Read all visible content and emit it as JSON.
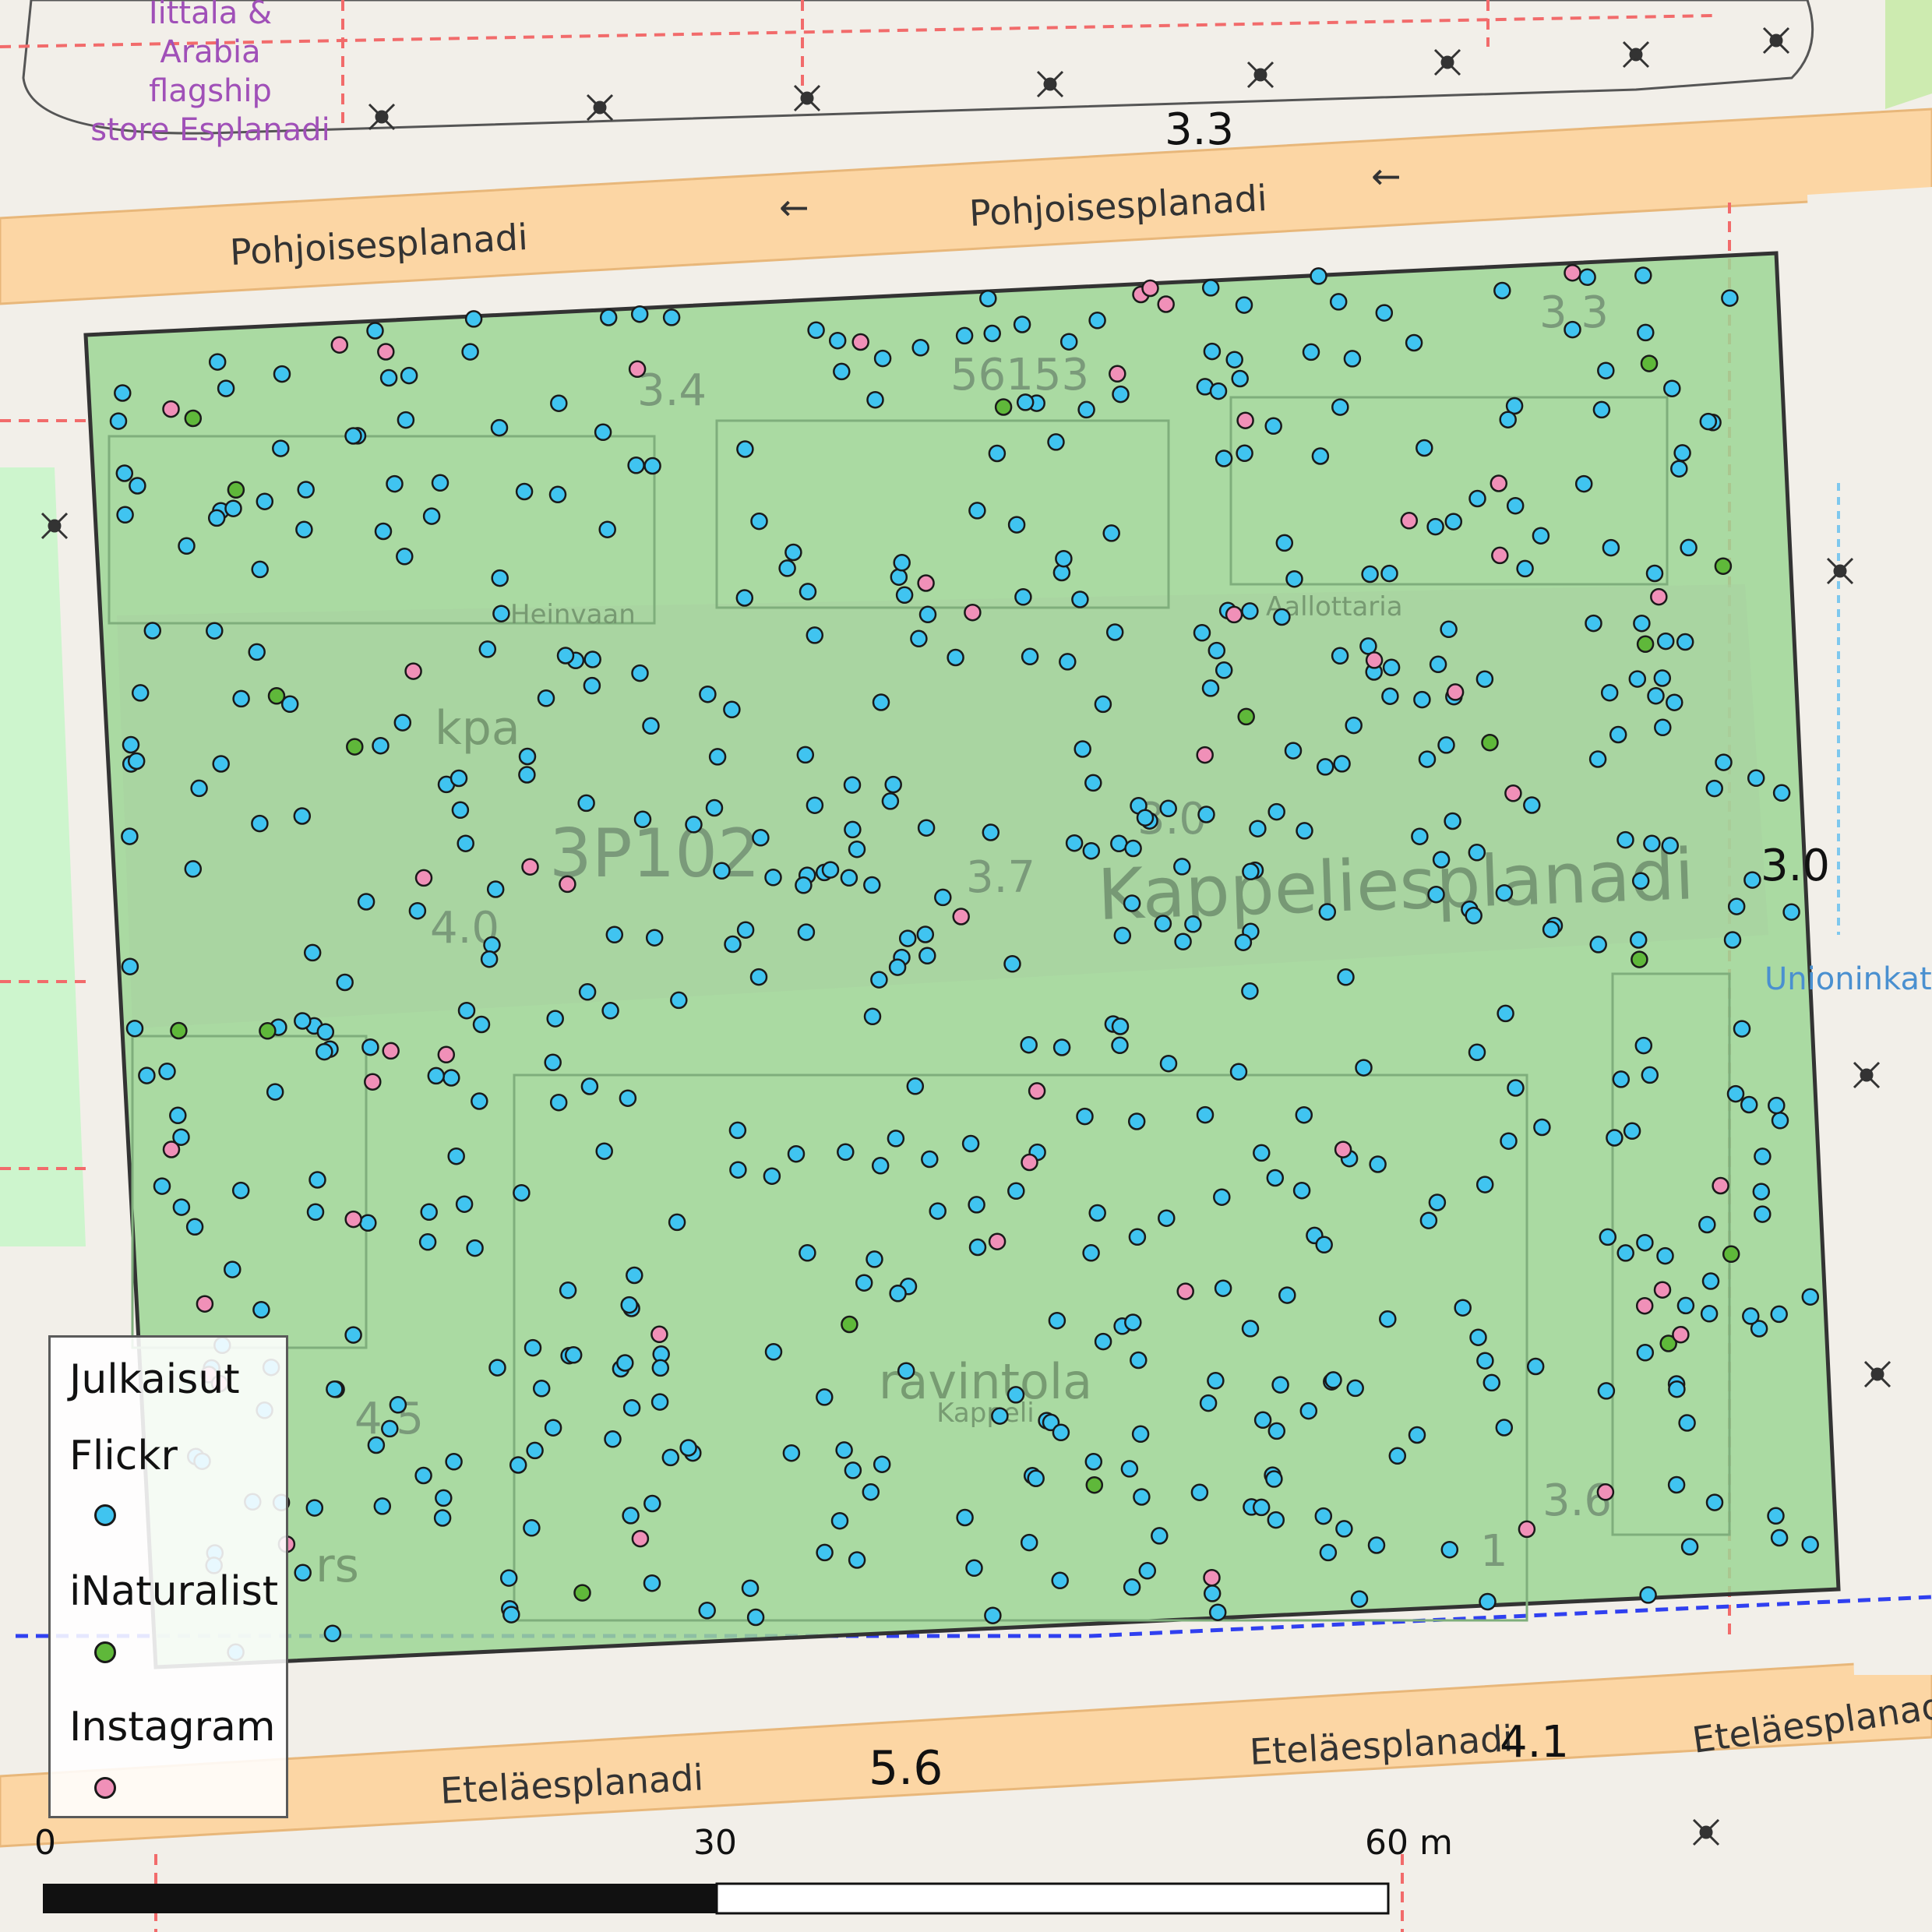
{
  "map": {
    "street_labels": [
      "Pohjoisesplanadi",
      "Pohjoisesplanadi",
      "Eteläesplanadi",
      "Eteläesplanadi",
      "Eteläesplanadi",
      "Kappeliesplanadi",
      "Unioninkatu"
    ],
    "poi_labels": [
      "Iittala &",
      "Arabia",
      "flagship",
      "store Esplanadi",
      "ravintola",
      "Kappeli",
      "Heinvaan",
      "Aallottaria",
      "kpa",
      "rs"
    ],
    "building_numbers": [
      "3.3",
      "3.4",
      "56153",
      "3.3",
      "3P102",
      "4.0",
      "3.0",
      "3.7",
      "3.6",
      "4.5",
      "5.6",
      "4.1",
      "3.0",
      "1"
    ],
    "area_fill_color": "#8fcf8a",
    "road_color": "#fcd6a4"
  },
  "legend": {
    "title": "Julkaisut",
    "entries": [
      {
        "label": "Flickr",
        "color": "#40c4f0"
      },
      {
        "label": "iNaturalist",
        "color": "#5fb83a"
      },
      {
        "label": "Instagram",
        "color": "#f090b8"
      }
    ]
  },
  "scalebar": {
    "labels": [
      "0",
      "30",
      "60 m"
    ]
  },
  "points": {
    "flickr_count": 560,
    "inaturalist_count": 18,
    "instagram_count": 50
  }
}
